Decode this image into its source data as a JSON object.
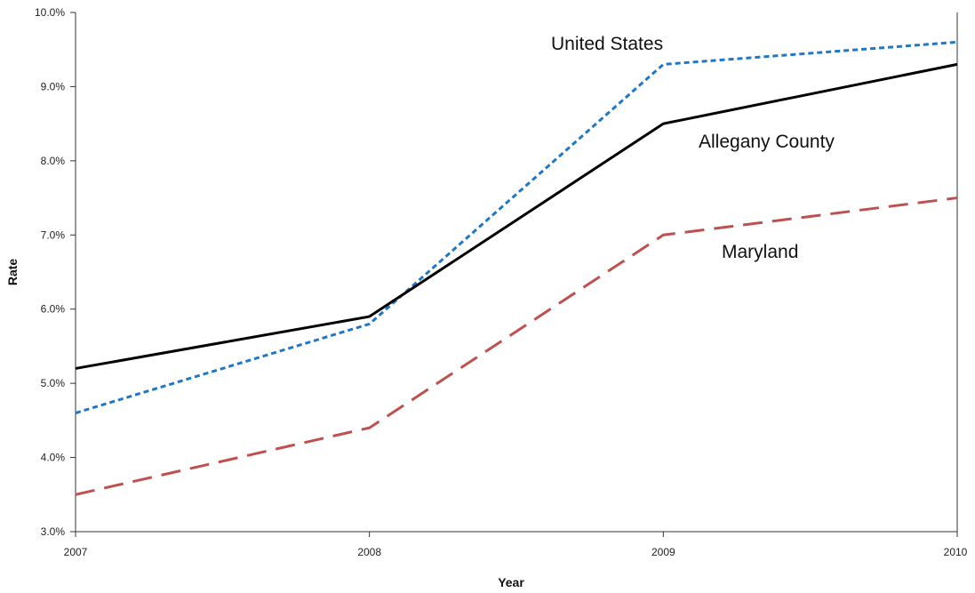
{
  "chart_data": {
    "type": "line",
    "title": "",
    "xlabel": "Year",
    "ylabel": "Rate",
    "x": [
      "2007",
      "2008",
      "2009",
      "2010"
    ],
    "ylim": [
      3.0,
      10.0
    ],
    "yticks": [
      "3.0%",
      "4.0%",
      "5.0%",
      "6.0%",
      "7.0%",
      "8.0%",
      "9.0%",
      "10.0%"
    ],
    "y_tick_values": [
      3.0,
      4.0,
      5.0,
      6.0,
      7.0,
      8.0,
      9.0,
      10.0
    ],
    "grid": false,
    "legend": "inline labels",
    "series": [
      {
        "name": "United States",
        "values": [
          4.6,
          5.8,
          9.3,
          9.6
        ],
        "color": "#1f77c8",
        "style": "dotted"
      },
      {
        "name": "Allegany County",
        "values": [
          5.2,
          5.9,
          8.5,
          9.3
        ],
        "color": "#000000",
        "style": "solid"
      },
      {
        "name": "Maryland",
        "values": [
          3.5,
          4.4,
          7.0,
          7.5
        ],
        "color": "#c0504d",
        "style": "dashed"
      }
    ]
  }
}
